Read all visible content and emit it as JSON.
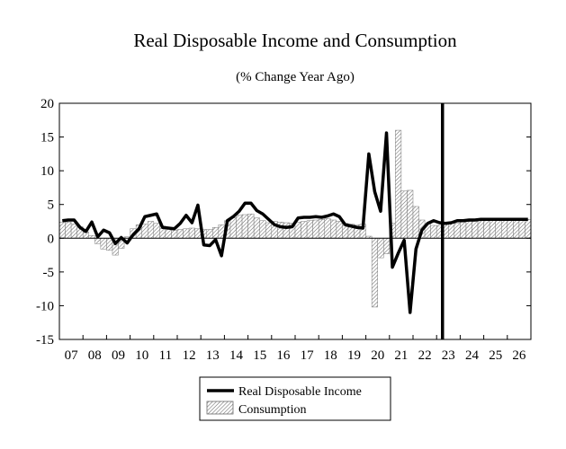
{
  "chart_data": {
    "type": "bar+line",
    "title": "Real Disposable Income and Consumption",
    "subtitle": "(% Change Year Ago)",
    "xlabel": "",
    "ylabel": "",
    "ylim": [
      -15,
      20
    ],
    "yticks": [
      20,
      15,
      10,
      5,
      0,
      -5,
      -10,
      -15
    ],
    "ytick_labels": [
      "20",
      "15",
      "10",
      "5",
      "0",
      "-5",
      "-10",
      "-15"
    ],
    "xlim": [
      2007,
      2027
    ],
    "xtick_labels": [
      "07",
      "08",
      "09",
      "10",
      "11",
      "12",
      "13",
      "14",
      "15",
      "16",
      "17",
      "18",
      "19",
      "20",
      "21",
      "22",
      "23",
      "24",
      "25",
      "26"
    ],
    "forecast_line_x": 2023.25,
    "legend": {
      "position": "bottom-center",
      "entries": [
        "Real Disposable Income",
        "Consumption"
      ]
    },
    "series": [
      {
        "name": "Consumption",
        "type": "bar",
        "x": [
          2007.0,
          2007.25,
          2007.5,
          2007.75,
          2008.0,
          2008.25,
          2008.5,
          2008.75,
          2009.0,
          2009.25,
          2009.5,
          2009.75,
          2010.0,
          2010.25,
          2010.5,
          2010.75,
          2011.0,
          2011.25,
          2011.5,
          2011.75,
          2012.0,
          2012.25,
          2012.5,
          2012.75,
          2013.0,
          2013.25,
          2013.5,
          2013.75,
          2014.0,
          2014.25,
          2014.5,
          2014.75,
          2015.0,
          2015.25,
          2015.5,
          2015.75,
          2016.0,
          2016.25,
          2016.5,
          2016.75,
          2017.0,
          2017.25,
          2017.5,
          2017.75,
          2018.0,
          2018.25,
          2018.5,
          2018.75,
          2019.0,
          2019.25,
          2019.5,
          2019.75,
          2020.0,
          2020.25,
          2020.5,
          2020.75,
          2021.0,
          2021.25,
          2021.5,
          2021.75,
          2022.0,
          2022.25,
          2022.5,
          2022.75,
          2023.0,
          2023.25,
          2023.5,
          2023.75,
          2024.0,
          2024.25,
          2024.5,
          2024.75,
          2025.0,
          2025.25,
          2025.5,
          2025.75,
          2026.0,
          2026.25,
          2026.5,
          2026.75
        ],
        "values": [
          2.4,
          2.4,
          2.1,
          1.7,
          0.9,
          0.4,
          -0.8,
          -1.6,
          -1.8,
          -2.5,
          -1.5,
          0.2,
          1.4,
          2.0,
          2.1,
          2.5,
          2.2,
          1.8,
          1.4,
          1.2,
          1.3,
          1.4,
          1.5,
          1.4,
          1.3,
          1.3,
          1.6,
          2.0,
          2.6,
          3.0,
          3.4,
          3.5,
          3.6,
          3.0,
          2.6,
          2.3,
          2.5,
          2.4,
          2.3,
          2.2,
          2.4,
          2.5,
          2.6,
          2.7,
          2.8,
          2.9,
          2.7,
          2.5,
          2.2,
          2.1,
          2.0,
          2.1,
          0.3,
          -10.2,
          -2.9,
          -2.3,
          2.2,
          16.0,
          7.0,
          7.1,
          4.7,
          2.7,
          2.2,
          1.9,
          1.9,
          2.3,
          2.2,
          2.2,
          2.4,
          2.5,
          2.6,
          2.7,
          2.7,
          2.8,
          2.8,
          2.8,
          2.8,
          2.8,
          2.8,
          2.8
        ]
      },
      {
        "name": "Real Disposable Income",
        "type": "line",
        "x": [
          2007.0,
          2007.25,
          2007.5,
          2007.75,
          2008.0,
          2008.25,
          2008.5,
          2008.75,
          2009.0,
          2009.25,
          2009.5,
          2009.75,
          2010.0,
          2010.25,
          2010.5,
          2010.75,
          2011.0,
          2011.25,
          2011.5,
          2011.75,
          2012.0,
          2012.25,
          2012.5,
          2012.75,
          2013.0,
          2013.25,
          2013.5,
          2013.75,
          2014.0,
          2014.25,
          2014.5,
          2014.75,
          2015.0,
          2015.25,
          2015.5,
          2015.75,
          2016.0,
          2016.25,
          2016.5,
          2016.75,
          2017.0,
          2017.25,
          2017.5,
          2017.75,
          2018.0,
          2018.25,
          2018.5,
          2018.75,
          2019.0,
          2019.25,
          2019.5,
          2019.75,
          2020.0,
          2020.25,
          2020.5,
          2020.75,
          2021.0,
          2021.25,
          2021.5,
          2021.75,
          2022.0,
          2022.25,
          2022.5,
          2022.75,
          2023.0,
          2023.25,
          2023.5,
          2023.75,
          2024.0,
          2024.25,
          2024.5,
          2024.75,
          2025.0,
          2025.25,
          2025.5,
          2025.75,
          2026.0,
          2026.25,
          2026.5,
          2026.75
        ],
        "values": [
          2.6,
          2.7,
          2.7,
          1.6,
          1.0,
          2.4,
          0.2,
          1.2,
          0.8,
          -0.8,
          0.1,
          -0.7,
          0.5,
          1.4,
          3.2,
          3.4,
          3.6,
          1.6,
          1.5,
          1.4,
          2.2,
          3.4,
          2.3,
          4.9,
          -1.0,
          -1.1,
          -0.2,
          -2.6,
          2.6,
          3.2,
          4.0,
          5.2,
          5.2,
          4.1,
          3.6,
          2.8,
          2.0,
          1.7,
          1.6,
          1.7,
          3.0,
          3.1,
          3.1,
          3.2,
          3.1,
          3.3,
          3.6,
          3.2,
          2.0,
          1.8,
          1.6,
          1.5,
          12.5,
          6.9,
          4.0,
          15.6,
          -4.3,
          -2.2,
          -0.3,
          -11.0,
          -1.6,
          1.2,
          2.2,
          2.6,
          2.3,
          2.2,
          2.3,
          2.6,
          2.6,
          2.7,
          2.7,
          2.8,
          2.8,
          2.8,
          2.8,
          2.8,
          2.8,
          2.8,
          2.8,
          2.8
        ]
      }
    ]
  }
}
